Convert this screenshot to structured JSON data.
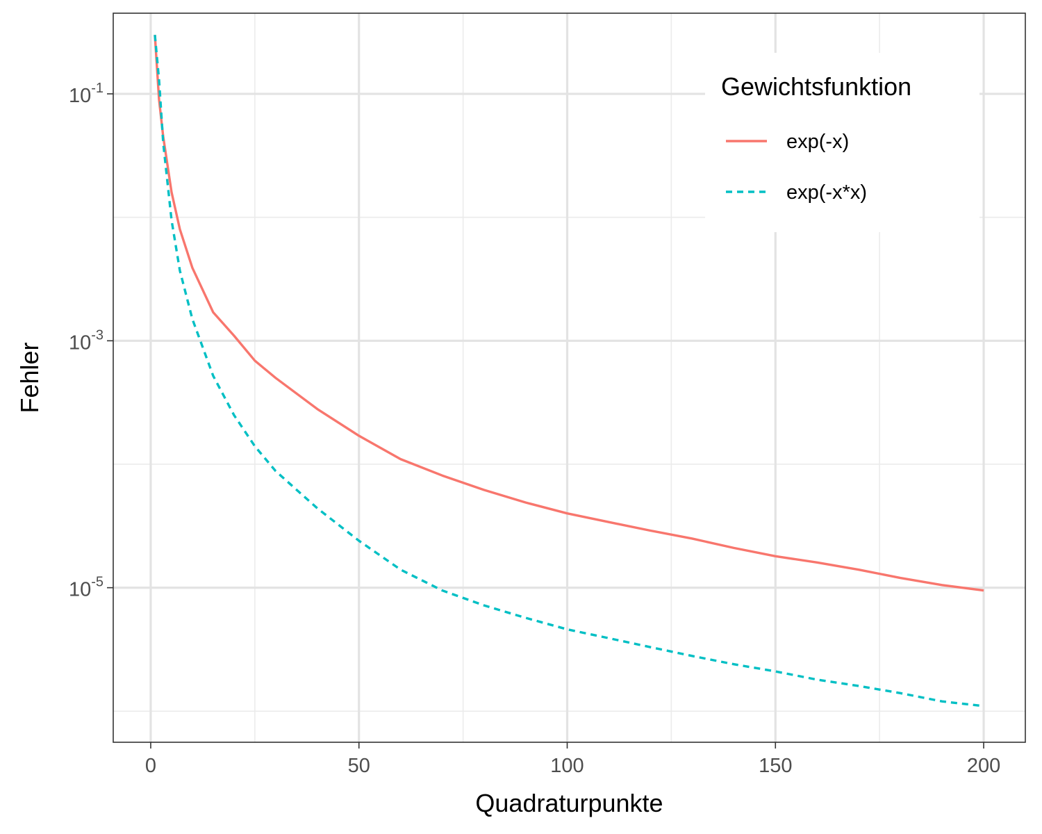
{
  "chart_data": {
    "type": "line",
    "title": "",
    "xlabel": "Quadraturpunkte",
    "ylabel": "Fehler",
    "y_scale": "log10",
    "xlim": [
      -9,
      210
    ],
    "ylim": [
      5.6e-07,
      0.45
    ],
    "x_ticks": [
      0,
      50,
      100,
      150,
      200
    ],
    "x_tick_labels": [
      "0",
      "50",
      "100",
      "150",
      "200"
    ],
    "y_ticks": [
      0.1,
      0.001,
      1e-05
    ],
    "y_tick_labels": [
      {
        "base": "10",
        "exp": "-1"
      },
      {
        "base": "10",
        "exp": "-3"
      },
      {
        "base": "10",
        "exp": "-5"
      }
    ],
    "grid": true,
    "legend": {
      "title": "Gewichtsfunktion",
      "position": "top-right"
    },
    "series": [
      {
        "name": "exp(-x)",
        "color": "#F8766D",
        "dash": "solid",
        "x": [
          1,
          2,
          3,
          5,
          7,
          10,
          15,
          20,
          25,
          30,
          40,
          50,
          60,
          70,
          80,
          90,
          100,
          110,
          120,
          130,
          140,
          150,
          160,
          170,
          180,
          190,
          200
        ],
        "y": [
          0.3,
          0.09,
          0.045,
          0.016,
          0.008,
          0.0039,
          0.0017,
          0.0011,
          0.00069,
          0.0005,
          0.00028,
          0.00017,
          0.00011,
          8.1e-05,
          6.2e-05,
          4.9e-05,
          4e-05,
          3.4e-05,
          2.9e-05,
          2.5e-05,
          2.1e-05,
          1.8e-05,
          1.6e-05,
          1.4e-05,
          1.2e-05,
          1.05e-05,
          9.5e-06
        ]
      },
      {
        "name": "exp(-x*x)",
        "color": "#00BFC4",
        "dash": "dashed",
        "x": [
          1,
          2,
          3,
          5,
          7,
          10,
          15,
          20,
          25,
          30,
          40,
          50,
          60,
          70,
          80,
          90,
          100,
          110,
          120,
          130,
          140,
          150,
          160,
          170,
          180,
          190,
          200
        ],
        "y": [
          0.3,
          0.13,
          0.04,
          0.0095,
          0.0037,
          0.0015,
          0.00052,
          0.00025,
          0.00014,
          8.8e-05,
          4.4e-05,
          2.4e-05,
          1.4e-05,
          9.5e-06,
          7.2e-06,
          5.7e-06,
          4.6e-06,
          3.9e-06,
          3.3e-06,
          2.8e-06,
          2.4e-06,
          2.1e-06,
          1.8e-06,
          1.6e-06,
          1.4e-06,
          1.2e-06,
          1.1e-06
        ]
      }
    ]
  }
}
